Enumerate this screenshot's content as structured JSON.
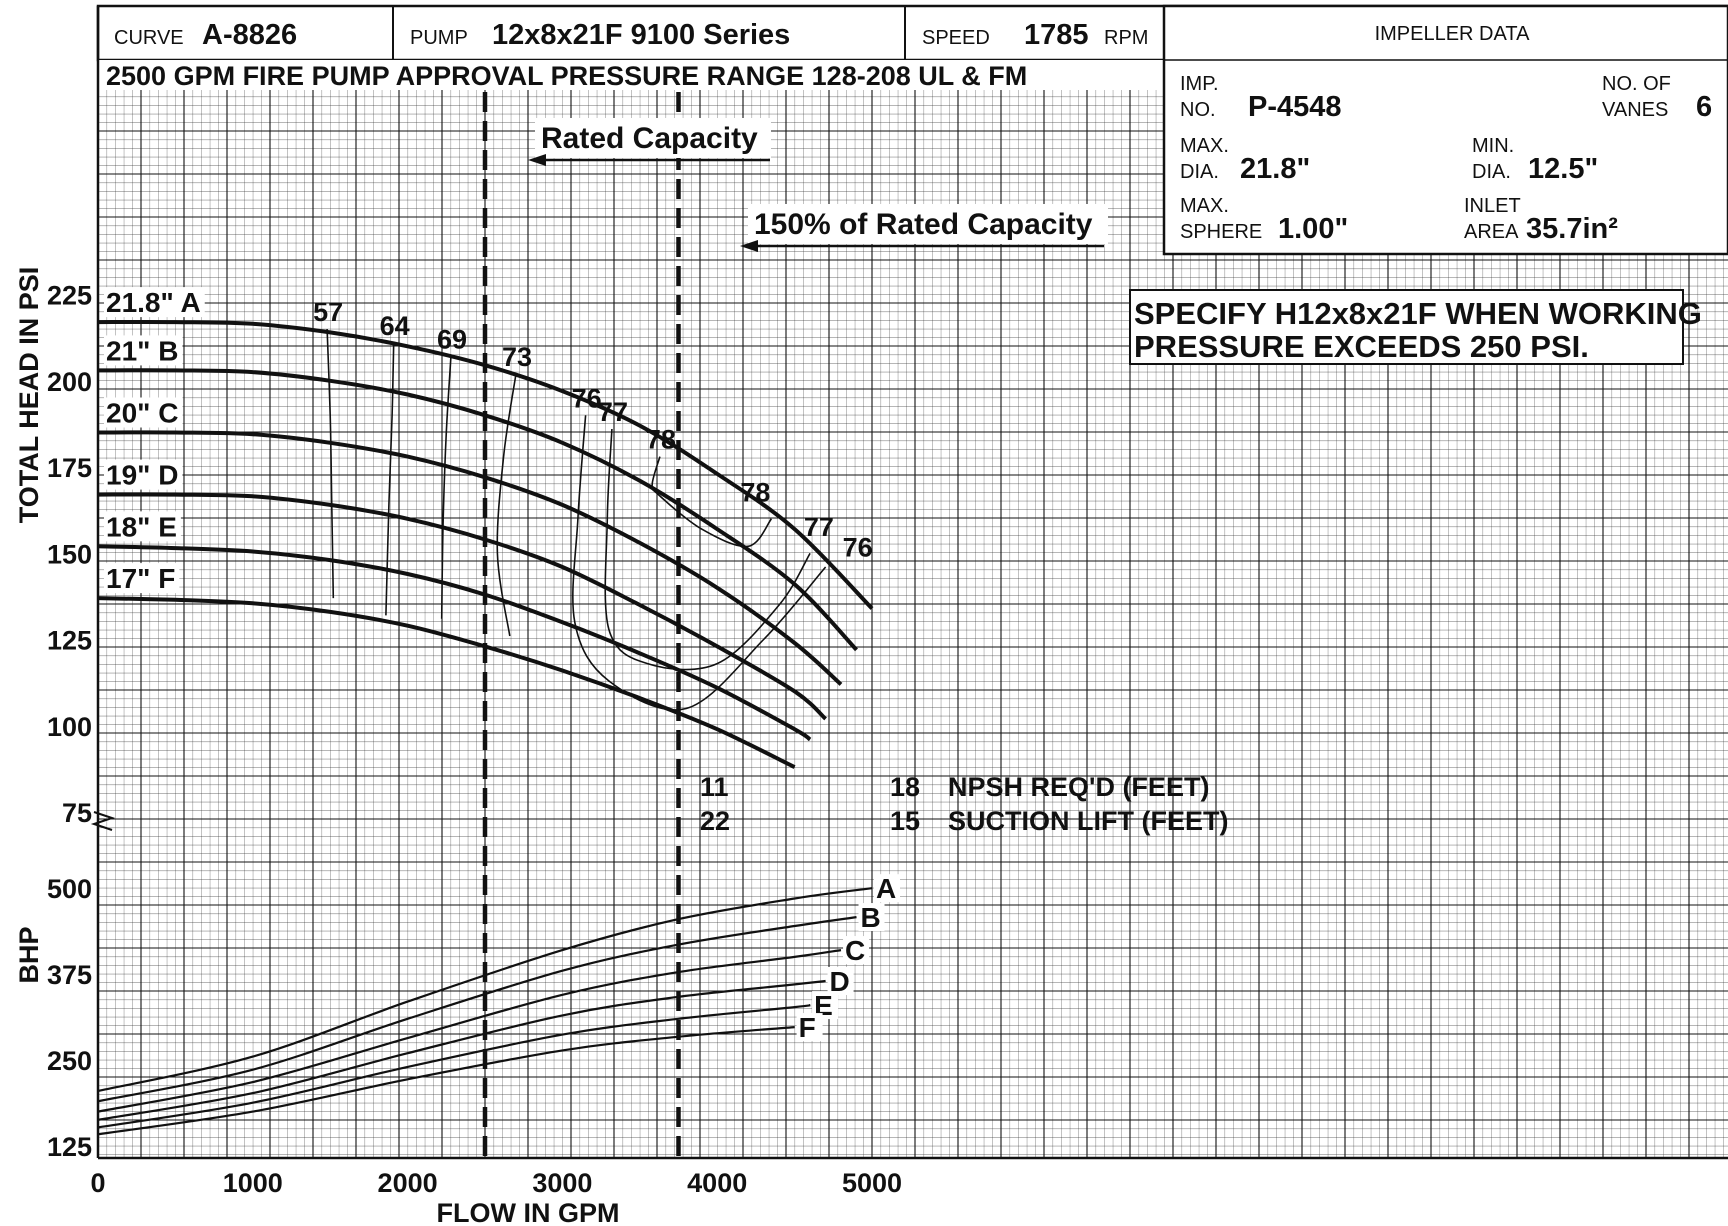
{
  "header": {
    "curve_label": "CURVE",
    "curve_value": "A-8826",
    "pump_label": "PUMP",
    "pump_value": "12x8x21F  9100 Series",
    "speed_label": "SPEED",
    "speed_value": "1785",
    "speed_unit": "RPM",
    "approval_text": "2500 GPM FIRE PUMP APPROVAL PRESSURE RANGE 128-208 UL & FM"
  },
  "impeller": {
    "title": "IMPELLER DATA",
    "imp_no_label_1": "IMP.",
    "imp_no_label_2": "NO.",
    "imp_no_value": "P-4548",
    "vanes_label_1": "NO. OF",
    "vanes_label_2": "VANES",
    "vanes_value": "6",
    "max_dia_label_1": "MAX.",
    "max_dia_label_2": "DIA.",
    "max_dia_value": "21.8\"",
    "min_dia_label_1": "MIN.",
    "min_dia_label_2": "DIA.",
    "min_dia_value": "12.5\"",
    "sphere_label_1": "MAX.",
    "sphere_label_2": "SPHERE",
    "sphere_value": "1.00\"",
    "inlet_label_1": "INLET",
    "inlet_label_2": "AREA",
    "inlet_value": "35.7in²"
  },
  "note": {
    "line1": "SPECIFY H12x8x21F WHEN WORKING",
    "line2": "PRESSURE EXCEEDS 250 PSI."
  },
  "annotations": {
    "rated_capacity": "Rated Capacity",
    "pct150_capacity": "150% of Rated Capacity",
    "npsh_label": "NPSH REQ'D (FEET)",
    "suction_label": "SUCTION LIFT (FEET)",
    "npsh_at_3750": "11",
    "suction_at_3750": "22",
    "npsh_at_4750": "18",
    "suction_at_4750": "15"
  },
  "colors": {
    "ink": "#111111",
    "background": "#ffffff"
  },
  "chart_data": {
    "type": "line",
    "xlabel": "FLOW IN GPM",
    "x_ticks": [
      "0",
      "1000",
      "2000",
      "3000",
      "4000",
      "5000"
    ],
    "xlim": [
      0,
      9600
    ],
    "head_axis": {
      "ylabel": "TOTAL HEAD IN PSI",
      "ticks": [
        "225",
        "200",
        "175",
        "150",
        "125",
        "100",
        "75"
      ],
      "ylim": [
        75,
        230
      ]
    },
    "bhp_axis": {
      "ylabel": "BHP",
      "ticks": [
        "500",
        "375",
        "250",
        "125"
      ],
      "ylim": [
        125,
        520
      ]
    },
    "grid": true,
    "rated_capacity_gpm": 2500,
    "pct150_capacity_gpm": 3750,
    "head_series": [
      {
        "name": "21.8\" A",
        "diameter": "21.8\"",
        "x": [
          0,
          500,
          1000,
          1500,
          2000,
          2500,
          3000,
          3500,
          4000,
          4500,
          5000
        ],
        "y": [
          217,
          217,
          216.5,
          214,
          210,
          204.5,
          197,
          187,
          173,
          157,
          134
        ]
      },
      {
        "name": "21\" B",
        "diameter": "21\"",
        "x": [
          0,
          500,
          1000,
          1500,
          2000,
          2500,
          3000,
          3500,
          4000,
          4500,
          4900
        ],
        "y": [
          203,
          203,
          202.5,
          200,
          196,
          190,
          182,
          171,
          157,
          141,
          122
        ]
      },
      {
        "name": "20\" C",
        "diameter": "20\"",
        "x": [
          0,
          500,
          1000,
          1500,
          2000,
          2500,
          3000,
          3500,
          4000,
          4500,
          4800
        ],
        "y": [
          185,
          185,
          184.5,
          182,
          178,
          172,
          164,
          153,
          140,
          124,
          112
        ]
      },
      {
        "name": "19\" D",
        "diameter": "19\"",
        "x": [
          0,
          500,
          1000,
          1500,
          2000,
          2500,
          3000,
          3500,
          4000,
          4500,
          4700
        ],
        "y": [
          167,
          167,
          166.5,
          164,
          160,
          154,
          146,
          135,
          123,
          110,
          102
        ]
      },
      {
        "name": "18\" E",
        "diameter": "18\"",
        "x": [
          0,
          500,
          1000,
          1500,
          2000,
          2500,
          3000,
          3500,
          4000,
          4500,
          4600
        ],
        "y": [
          152,
          151.5,
          150.5,
          148,
          144,
          138,
          130,
          121,
          111,
          99,
          96
        ]
      },
      {
        "name": "17\" F",
        "diameter": "17\"",
        "x": [
          0,
          500,
          1000,
          1500,
          2000,
          2500,
          3000,
          3500,
          4000,
          4500
        ],
        "y": [
          137,
          136.5,
          135.5,
          133,
          129,
          123,
          116,
          108,
          99,
          88
        ]
      }
    ],
    "efficiency_contours": [
      {
        "label": "57",
        "x": [
          1480,
          1500,
          1510,
          1520
        ],
        "y": [
          215,
          190,
          165,
          137
        ]
      },
      {
        "label": "64",
        "x": [
          1910,
          1900,
          1880,
          1860
        ],
        "y": [
          211,
          190,
          165,
          132
        ]
      },
      {
        "label": "69",
        "x": [
          2280,
          2250,
          2230,
          2220
        ],
        "y": [
          207,
          185,
          160,
          131
        ]
      },
      {
        "label": "73",
        "x": [
          2700,
          2620,
          2580,
          2660
        ],
        "y": [
          202,
          178,
          150,
          126
        ]
      },
      {
        "label": "76",
        "x": [
          3150,
          3100,
          3080,
          3300,
          3800,
          4300,
          4700
        ],
        "y": [
          190,
          160,
          130,
          113,
          105,
          125,
          146
        ]
      },
      {
        "label": "77",
        "x": [
          3320,
          3290,
          3300,
          3550,
          4000,
          4400,
          4600
        ],
        "y": [
          186,
          160,
          128,
          118,
          118,
          135,
          150
        ]
      },
      {
        "label": "78",
        "x": [
          3630,
          3580,
          3620,
          3900,
          4200,
          4350
        ],
        "y": [
          178,
          170,
          167,
          157,
          152,
          160
        ]
      }
    ],
    "efficiency_extra_labels": [
      {
        "label": "78",
        "x": 4150,
        "y": 165
      },
      {
        "label": "77",
        "x": 4560,
        "y": 155
      },
      {
        "label": "76",
        "x": 4810,
        "y": 149
      }
    ],
    "bhp_series": [
      {
        "name": "A",
        "x": [
          0,
          1000,
          2000,
          3000,
          3750,
          4500,
          5000
        ],
        "y": [
          205,
          255,
          335,
          410,
          455,
          485,
          500
        ]
      },
      {
        "name": "B",
        "x": [
          0,
          1000,
          2000,
          3000,
          3750,
          4500,
          4900
        ],
        "y": [
          190,
          236,
          310,
          380,
          418,
          445,
          458
        ]
      },
      {
        "name": "C",
        "x": [
          0,
          1000,
          2000,
          3000,
          3750,
          4500,
          4800
        ],
        "y": [
          175,
          218,
          282,
          345,
          378,
          400,
          410
        ]
      },
      {
        "name": "D",
        "x": [
          0,
          1000,
          2000,
          3000,
          3750,
          4500,
          4700
        ],
        "y": [
          163,
          202,
          260,
          315,
          342,
          360,
          365
        ]
      },
      {
        "name": "E",
        "x": [
          0,
          1000,
          2000,
          3000,
          3750,
          4500,
          4600
        ],
        "y": [
          152,
          188,
          240,
          287,
          310,
          327,
          330
        ]
      },
      {
        "name": "F",
        "x": [
          0,
          1000,
          2000,
          3000,
          3750,
          4500
        ],
        "y": [
          142,
          175,
          222,
          264,
          284,
          298
        ]
      }
    ]
  }
}
